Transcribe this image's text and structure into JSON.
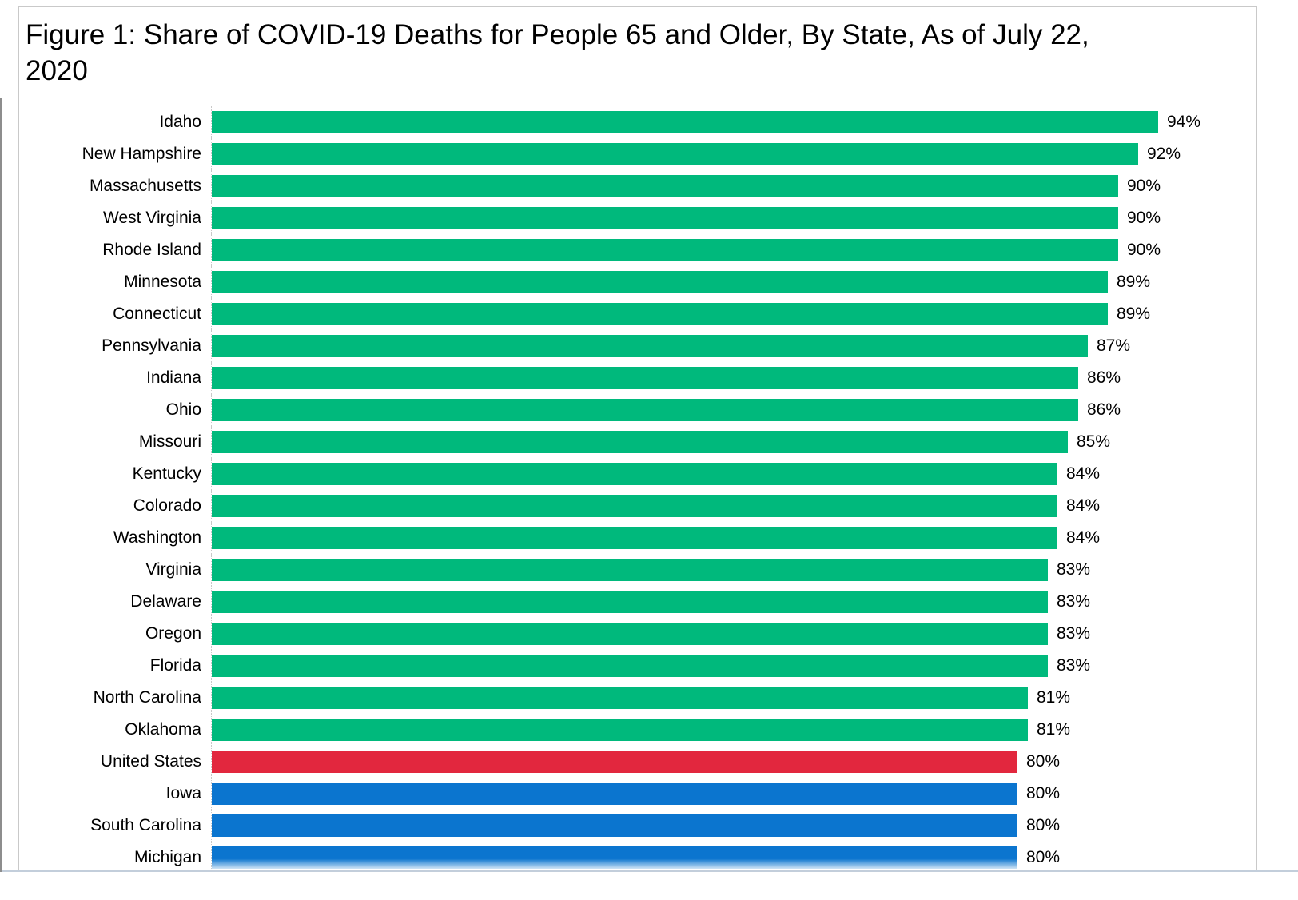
{
  "figure": {
    "title_lines": [
      "Figure 1: Share of COVID-19 Deaths for People 65 and Older, By State, As of July 22,",
      "2020"
    ]
  },
  "chart_data": {
    "type": "bar",
    "orientation": "horizontal",
    "title": "Figure 1: Share of COVID-19 Deaths for People 65 and Older, By State, As of July 22, 2020",
    "unit": "percent",
    "xlim": [
      0,
      100
    ],
    "grid": false,
    "legend": "none",
    "value_label_position": "outside-end",
    "categories": [
      "Idaho",
      "New Hampshire",
      "Massachusetts",
      "West Virginia",
      "Rhode Island",
      "Minnesota",
      "Connecticut",
      "Pennsylvania",
      "Indiana",
      "Ohio",
      "Missouri",
      "Kentucky",
      "Colorado",
      "Washington",
      "Virginia",
      "Delaware",
      "Oregon",
      "Florida",
      "North Carolina",
      "Oklahoma",
      "United States",
      "Iowa",
      "South Carolina",
      "Michigan"
    ],
    "values": [
      94,
      92,
      90,
      90,
      90,
      89,
      89,
      87,
      86,
      86,
      85,
      84,
      84,
      84,
      83,
      83,
      83,
      83,
      81,
      81,
      80,
      80,
      80,
      80
    ],
    "value_labels": [
      "94%",
      "92%",
      "90%",
      "90%",
      "90%",
      "89%",
      "89%",
      "87%",
      "86%",
      "86%",
      "85%",
      "84%",
      "84%",
      "84%",
      "83%",
      "83%",
      "83%",
      "83%",
      "81%",
      "81%",
      "80%",
      "80%",
      "80%",
      "80%"
    ],
    "bar_groups": [
      "state-above-us",
      "state-above-us",
      "state-above-us",
      "state-above-us",
      "state-above-us",
      "state-above-us",
      "state-above-us",
      "state-above-us",
      "state-above-us",
      "state-above-us",
      "state-above-us",
      "state-above-us",
      "state-above-us",
      "state-above-us",
      "state-above-us",
      "state-above-us",
      "state-above-us",
      "state-above-us",
      "state-above-us",
      "state-above-us",
      "united-states",
      "state-below-us",
      "state-below-us",
      "state-below-us"
    ],
    "group_colors": {
      "state-above-us": "#00b97c",
      "united-states": "#e2273e",
      "state-below-us": "#0b75cf"
    }
  }
}
